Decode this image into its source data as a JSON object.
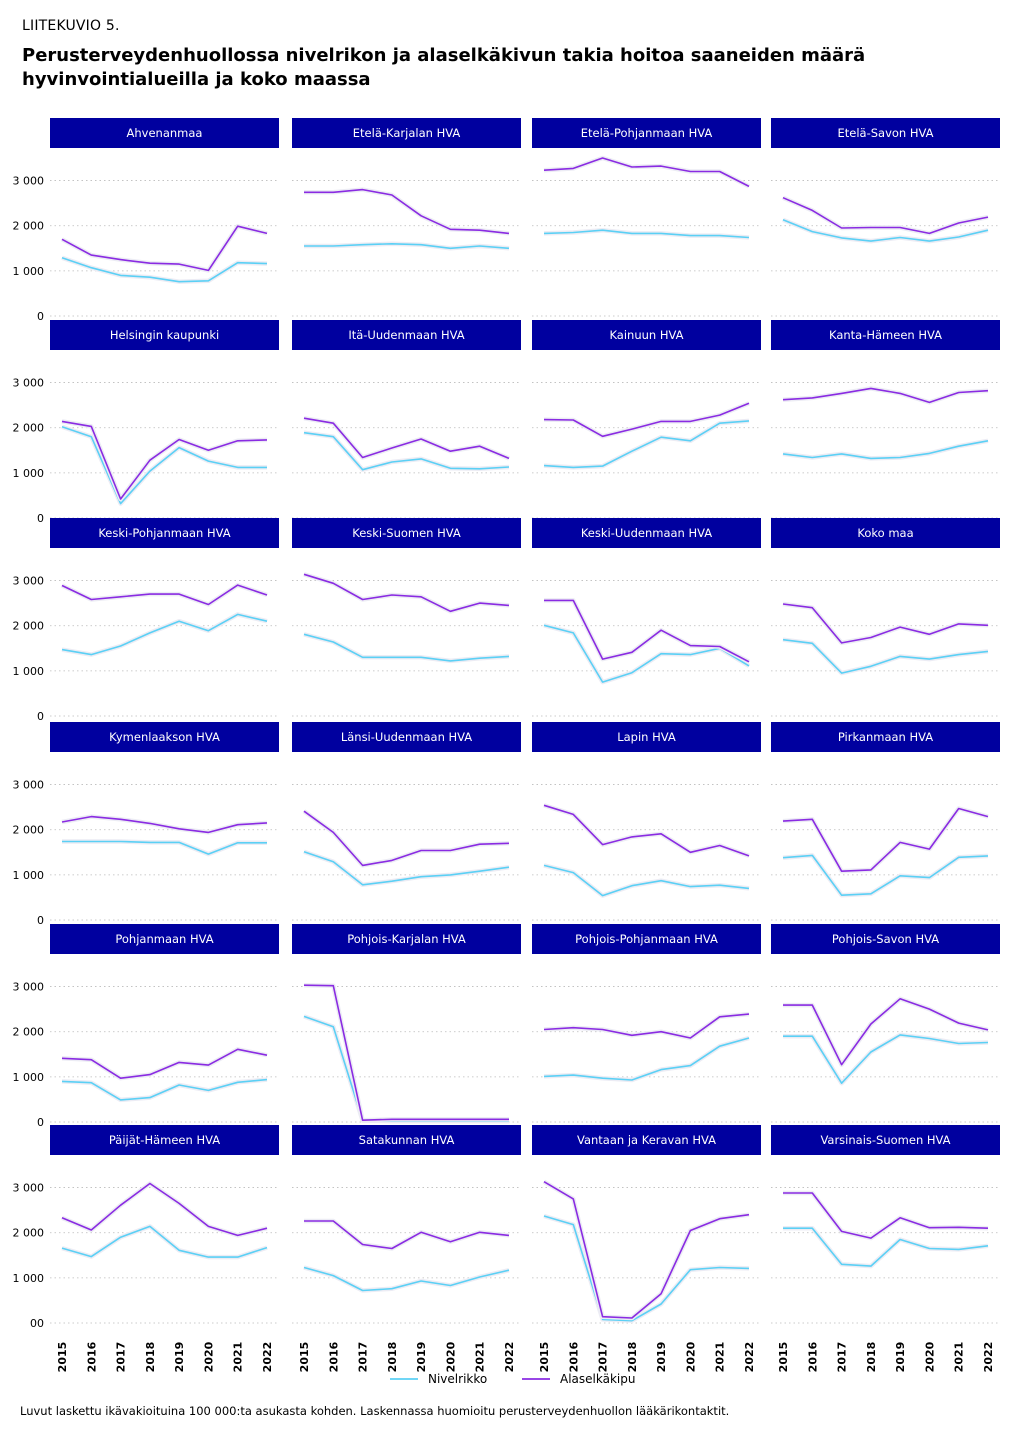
{
  "figure_label": "LIITEKUVIO 5.",
  "title": "Perusterveydenhuollossa nivelrikon ja alaselkäkivun takia hoitoa saaneiden määrä hyvinvointialueilla ja koko maassa",
  "footnote": "Luvut laskettu ikävakioituina 100 000:ta asukasta kohden. Laskennassa huomioitu perusterveydenhuollon lääkärikontaktit.",
  "colors": {
    "strip": "#00009f",
    "nivelrikko": "#5bd0f5",
    "alaselkakipu": "#8a2be2",
    "grid": "#bbbbbb"
  },
  "chart_data": {
    "type": "line",
    "x": [
      2015,
      2016,
      2017,
      2018,
      2019,
      2020,
      2021,
      2022
    ],
    "x_tick_labels": [
      "2015",
      "2016",
      "2017",
      "2018",
      "2019",
      "2020",
      "2021",
      "2022"
    ],
    "y_ticks": [
      0,
      1000,
      2000,
      3000
    ],
    "y_tick_labels": [
      "0",
      "1 000",
      "2 000",
      "3 000"
    ],
    "y_tick_labels_last_row": [
      "00",
      "1 000",
      "2 000",
      "3 000"
    ],
    "ylim": [
      0,
      3500
    ],
    "grid": true,
    "legend": {
      "position": "bottom",
      "entries": [
        "Nivelrikko",
        "Alaselkäkipu"
      ]
    },
    "panels": [
      {
        "name": "Ahvenanmaa",
        "nivelrikko": [
          1290,
          1070,
          900,
          860,
          760,
          780,
          1180,
          1160
        ],
        "alaselkakipu": [
          1700,
          1350,
          1250,
          1170,
          1150,
          1010,
          1990,
          1830
        ]
      },
      {
        "name": "Etelä-Karjalan HVA",
        "nivelrikko": [
          1550,
          1550,
          1580,
          1600,
          1580,
          1500,
          1550,
          1500
        ],
        "alaselkakipu": [
          2740,
          2740,
          2800,
          2680,
          2220,
          1920,
          1900,
          1830
        ]
      },
      {
        "name": "Etelä-Pohjanmaan HVA",
        "nivelrikko": [
          1830,
          1850,
          1900,
          1830,
          1830,
          1780,
          1780,
          1740
        ],
        "alaselkakipu": [
          3230,
          3270,
          3500,
          3300,
          3320,
          3200,
          3200,
          2870
        ]
      },
      {
        "name": "Etelä-Savon HVA",
        "nivelrikko": [
          2130,
          1870,
          1730,
          1660,
          1740,
          1660,
          1750,
          1900
        ],
        "alaselkakipu": [
          2620,
          2340,
          1950,
          1960,
          1960,
          1830,
          2060,
          2190
        ]
      },
      {
        "name": "Helsingin kaupunki",
        "nivelrikko": [
          2020,
          1800,
          320,
          1040,
          1560,
          1260,
          1120,
          1120
        ],
        "alaselkakipu": [
          2140,
          2030,
          420,
          1280,
          1740,
          1500,
          1710,
          1730
        ]
      },
      {
        "name": "Itä-Uudenmaan HVA",
        "nivelrikko": [
          1890,
          1800,
          1070,
          1240,
          1310,
          1100,
          1090,
          1130
        ],
        "alaselkakipu": [
          2210,
          2100,
          1340,
          1550,
          1750,
          1480,
          1590,
          1320
        ]
      },
      {
        "name": "Kainuun HVA",
        "nivelrikko": [
          1160,
          1120,
          1150,
          1480,
          1790,
          1710,
          2100,
          2150
        ],
        "alaselkakipu": [
          2180,
          2170,
          1810,
          1970,
          2140,
          2140,
          2280,
          2540
        ]
      },
      {
        "name": "Kanta-Hämeen HVA",
        "nivelrikko": [
          1420,
          1340,
          1420,
          1320,
          1340,
          1430,
          1590,
          1710
        ],
        "alaselkakipu": [
          2620,
          2660,
          2760,
          2870,
          2760,
          2560,
          2780,
          2820
        ]
      },
      {
        "name": "Keski-Pohjanmaan HVA",
        "nivelrikko": [
          1470,
          1360,
          1550,
          1840,
          2100,
          1890,
          2250,
          2100
        ],
        "alaselkakipu": [
          2890,
          2580,
          2640,
          2700,
          2700,
          2470,
          2900,
          2680
        ]
      },
      {
        "name": "Keski-Suomen HVA",
        "nivelrikko": [
          1810,
          1640,
          1300,
          1300,
          1300,
          1220,
          1280,
          1320
        ],
        "alaselkakipu": [
          3140,
          2940,
          2580,
          2680,
          2640,
          2320,
          2500,
          2450
        ]
      },
      {
        "name": "Keski-Uudenmaan HVA",
        "nivelrikko": [
          2010,
          1840,
          750,
          960,
          1380,
          1360,
          1500,
          1110
        ],
        "alaselkakipu": [
          2560,
          2560,
          1260,
          1410,
          1900,
          1560,
          1540,
          1200
        ]
      },
      {
        "name": "Koko maa",
        "nivelrikko": [
          1690,
          1610,
          950,
          1100,
          1320,
          1260,
          1360,
          1430
        ],
        "alaselkakipu": [
          2480,
          2400,
          1620,
          1740,
          1970,
          1810,
          2040,
          2010
        ]
      },
      {
        "name": "Kymenlaakson HVA",
        "nivelrikko": [
          1740,
          1740,
          1740,
          1720,
          1720,
          1460,
          1710,
          1710
        ],
        "alaselkakipu": [
          2170,
          2290,
          2230,
          2140,
          2020,
          1940,
          2110,
          2150
        ]
      },
      {
        "name": "Länsi-Uudenmaan HVA",
        "nivelrikko": [
          1510,
          1290,
          780,
          860,
          960,
          1000,
          1080,
          1170
        ],
        "alaselkakipu": [
          2410,
          1940,
          1210,
          1320,
          1540,
          1540,
          1680,
          1700
        ]
      },
      {
        "name": "Lapin HVA",
        "nivelrikko": [
          1210,
          1050,
          540,
          760,
          870,
          740,
          770,
          700
        ],
        "alaselkakipu": [
          2540,
          2340,
          1670,
          1840,
          1910,
          1500,
          1650,
          1420
        ]
      },
      {
        "name": "Pirkanmaan HVA",
        "nivelrikko": [
          1380,
          1430,
          550,
          580,
          980,
          940,
          1390,
          1420
        ],
        "alaselkakipu": [
          2190,
          2230,
          1080,
          1110,
          1720,
          1570,
          2470,
          2290
        ]
      },
      {
        "name": "Pohjanmaan HVA",
        "nivelrikko": [
          900,
          870,
          490,
          540,
          820,
          700,
          880,
          940
        ],
        "alaselkakipu": [
          1410,
          1380,
          970,
          1050,
          1320,
          1260,
          1610,
          1480
        ]
      },
      {
        "name": "Pohjois-Karjalan HVA",
        "nivelrikko": [
          2340,
          2110,
          30,
          20,
          20,
          20,
          20,
          20
        ],
        "alaselkakipu": [
          3030,
          3020,
          40,
          60,
          60,
          60,
          60,
          60
        ]
      },
      {
        "name": "Pohjois-Pohjanmaan HVA",
        "nivelrikko": [
          1010,
          1040,
          970,
          930,
          1160,
          1250,
          1680,
          1860
        ],
        "alaselkakipu": [
          2050,
          2090,
          2050,
          1920,
          2000,
          1860,
          2330,
          2390
        ]
      },
      {
        "name": "Pohjois-Savon HVA",
        "nivelrikko": [
          1900,
          1900,
          860,
          1550,
          1930,
          1850,
          1740,
          1760
        ],
        "alaselkakipu": [
          2590,
          2590,
          1270,
          2170,
          2730,
          2500,
          2190,
          2040
        ]
      },
      {
        "name": "Päijät-Hämeen HVA",
        "nivelrikko": [
          1660,
          1470,
          1900,
          2140,
          1610,
          1460,
          1460,
          1670
        ],
        "alaselkakipu": [
          2330,
          2060,
          2610,
          3090,
          2650,
          2140,
          1940,
          2100
        ]
      },
      {
        "name": "Satakunnan HVA",
        "nivelrikko": [
          1230,
          1050,
          720,
          760,
          930,
          830,
          1020,
          1170
        ],
        "alaselkakipu": [
          2260,
          2260,
          1740,
          1650,
          2010,
          1800,
          2010,
          1940
        ]
      },
      {
        "name": "Vantaan ja Keravan HVA",
        "nivelrikko": [
          2370,
          2180,
          80,
          50,
          420,
          1180,
          1230,
          1210
        ],
        "alaselkakipu": [
          3130,
          2750,
          140,
          110,
          650,
          2050,
          2310,
          2400
        ]
      },
      {
        "name": "Varsinais-Suomen HVA",
        "nivelrikko": [
          2100,
          2100,
          1300,
          1260,
          1850,
          1650,
          1630,
          1710
        ],
        "alaselkakipu": [
          2880,
          2880,
          2030,
          1880,
          2330,
          2110,
          2120,
          2100
        ]
      }
    ]
  }
}
